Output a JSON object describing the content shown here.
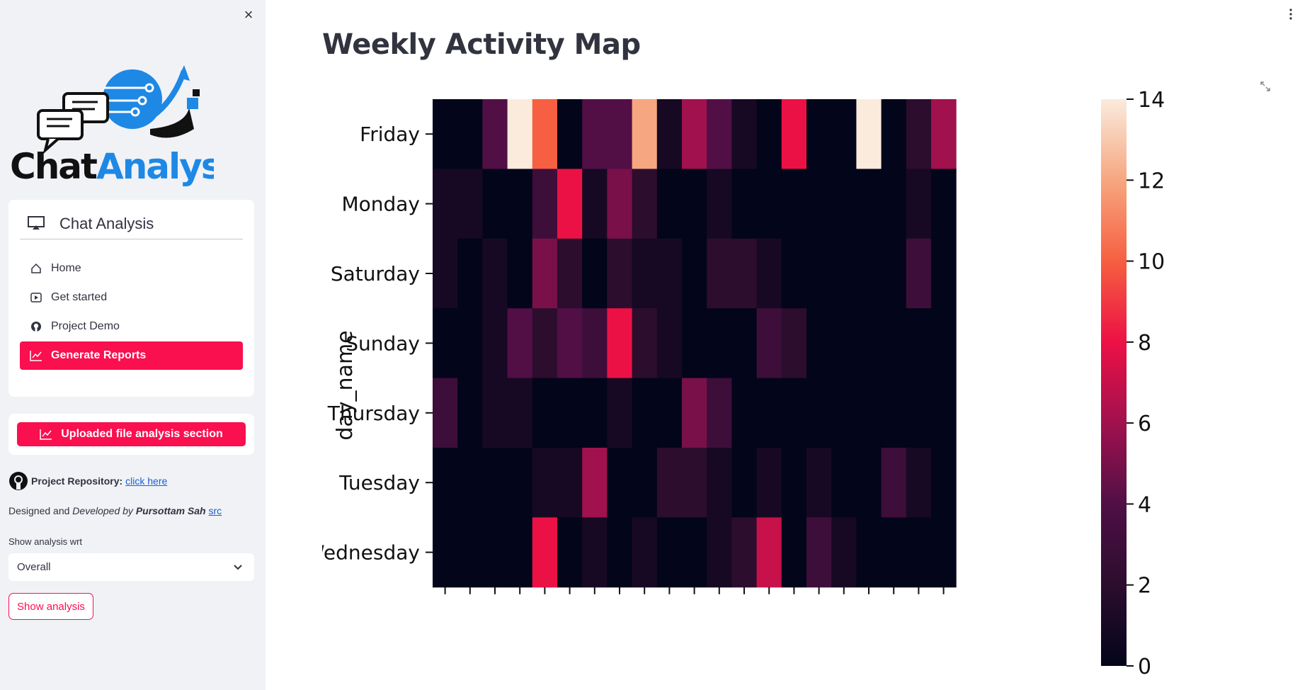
{
  "sidebar": {
    "close_label": "×",
    "logo": {
      "part1": "Chat",
      "part2": "Analysis"
    },
    "menu": {
      "title": "Chat Analysis",
      "items": [
        {
          "label": "Home",
          "icon": "house-icon"
        },
        {
          "label": "Get started",
          "icon": "play-icon"
        },
        {
          "label": "Project Demo",
          "icon": "github-icon"
        },
        {
          "label": "Generate Reports",
          "icon": "chart-line-icon",
          "active": true
        }
      ]
    },
    "upload_button": "Uploaded file analysis section",
    "repo": {
      "label": "Project Repository:",
      "link": "click here"
    },
    "designed": {
      "pre": "Designed and ",
      "mid": "Developed by ",
      "author": "Pursottam Sah",
      "link": "src"
    },
    "show_label": "Show analysis wrt",
    "select_value": "Overall",
    "show_button": "Show analysis"
  },
  "main": {
    "title": "Weekly Activity Map"
  },
  "colors": {
    "accent": "#fa0f4f",
    "sidebar_bg": "#f0f2f6"
  },
  "chart_data": {
    "type": "heatmap",
    "ylabel": "day_name",
    "rows": [
      "Friday",
      "Monday",
      "Saturday",
      "Sunday",
      "Thursday",
      "Tuesday",
      "Wednesday"
    ],
    "n_cols": 21,
    "values": [
      [
        0,
        0,
        4,
        14,
        10,
        0,
        4,
        4,
        12,
        1,
        6,
        4,
        1,
        0,
        8,
        0,
        0,
        14,
        0,
        2,
        6
      ],
      [
        1,
        1,
        0,
        0,
        3,
        8,
        1,
        5,
        2,
        0,
        0,
        1,
        0,
        0,
        0,
        0,
        0,
        0,
        0,
        1,
        0
      ],
      [
        1,
        0,
        1,
        0,
        5,
        2,
        0,
        2,
        1,
        1,
        0,
        2,
        2,
        1,
        0,
        0,
        0,
        0,
        0,
        3,
        0
      ],
      [
        0,
        0,
        1,
        4,
        2,
        4,
        3,
        8,
        2,
        1,
        0,
        0,
        0,
        3,
        2,
        0,
        0,
        0,
        0,
        0,
        0
      ],
      [
        3,
        0,
        1,
        1,
        0,
        0,
        0,
        1,
        0,
        0,
        5,
        3,
        0,
        0,
        0,
        0,
        0,
        0,
        0,
        0,
        0
      ],
      [
        0,
        0,
        0,
        0,
        1,
        1,
        6,
        0,
        0,
        2,
        2,
        1,
        0,
        1,
        0,
        1,
        0,
        0,
        3,
        1,
        0
      ],
      [
        0,
        0,
        0,
        0,
        8,
        0,
        1,
        0,
        1,
        0,
        0,
        1,
        2,
        7,
        0,
        3,
        1,
        0,
        0,
        0,
        0
      ]
    ],
    "colorbar": {
      "min": 0,
      "max": 14,
      "ticks": [
        0,
        2,
        4,
        6,
        8,
        10,
        12,
        14
      ]
    }
  }
}
